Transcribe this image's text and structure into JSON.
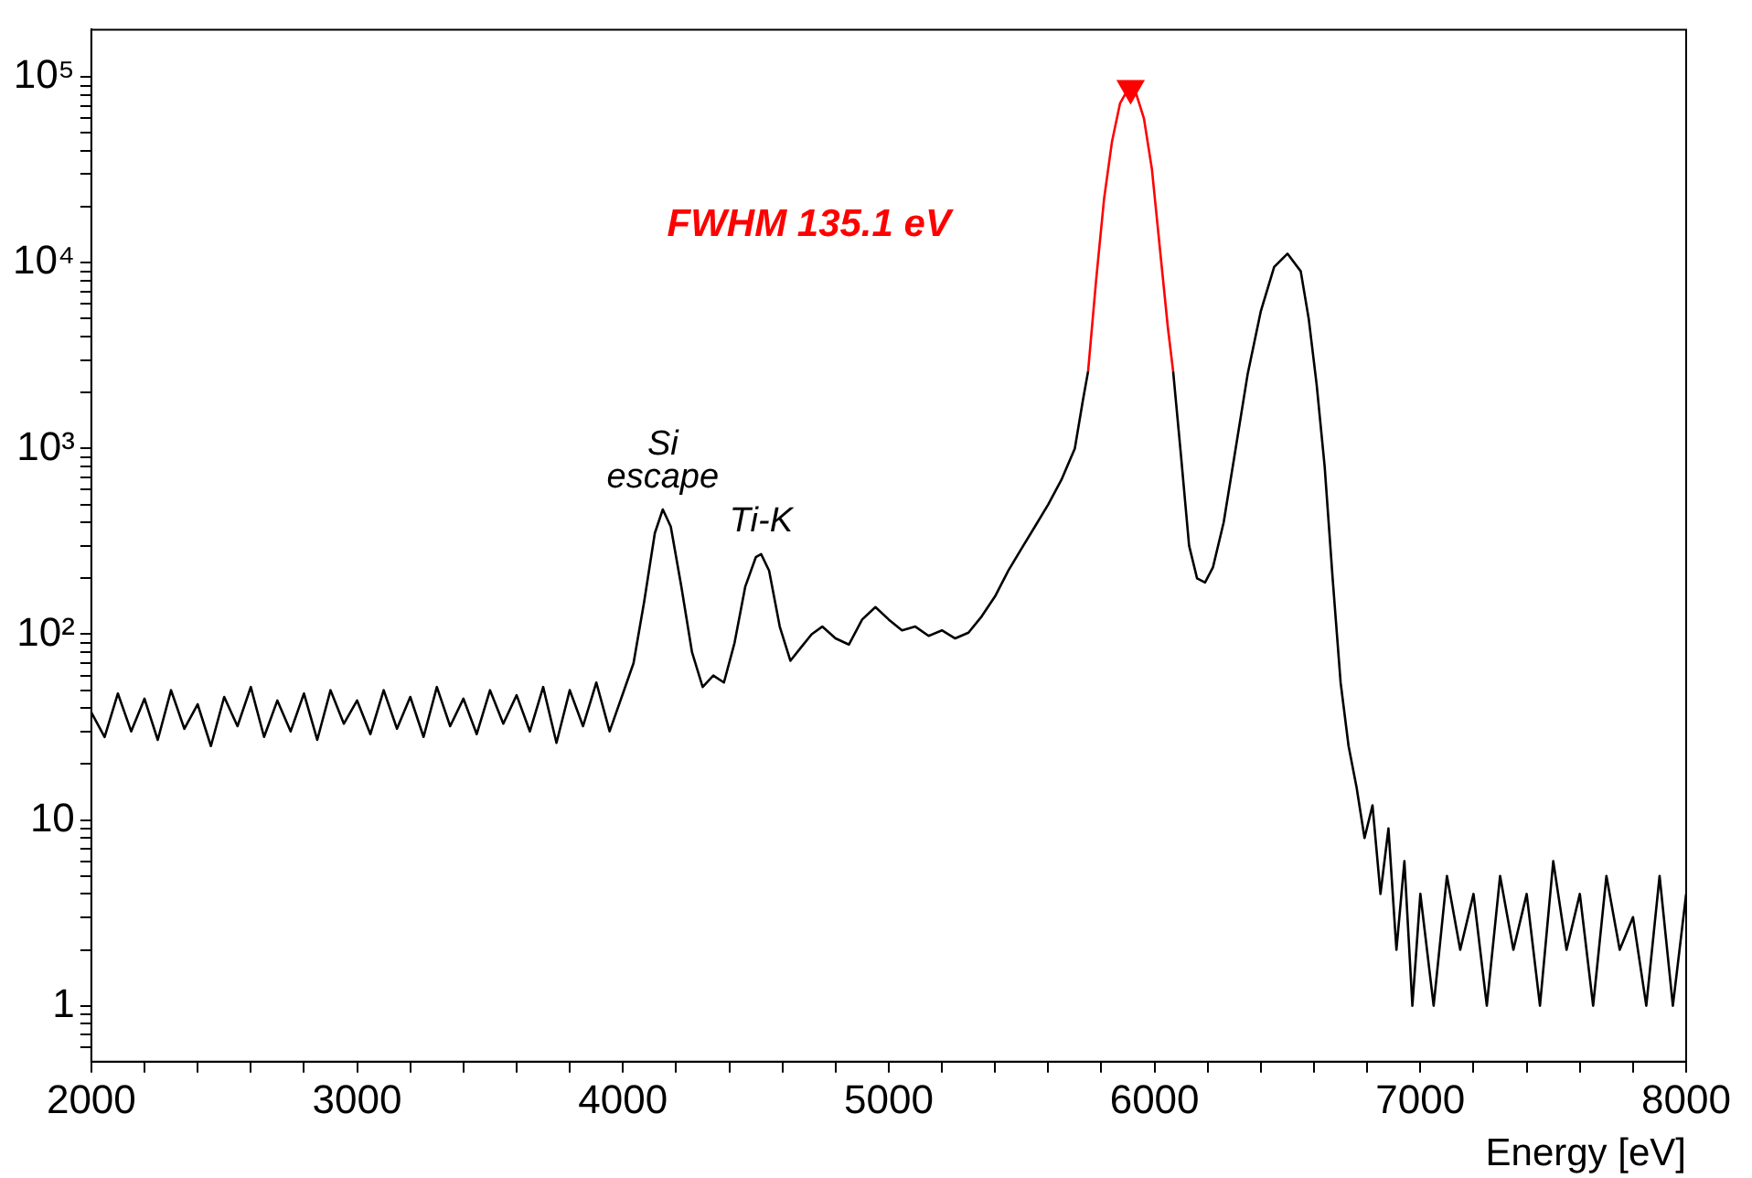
{
  "chart_data": {
    "type": "line",
    "xlabel": "Energy [eV]",
    "log": "y",
    "grid": false,
    "legend": false,
    "marker": "none",
    "line_style": "solid",
    "xlim": [
      2000,
      8000
    ],
    "xticks": [
      2000,
      {
        "value": 2200,
        "label": null
      },
      {
        "value": 2400,
        "label": null
      },
      {
        "value": 2600,
        "label": null
      },
      {
        "value": 2800,
        "label": null
      },
      3000,
      {
        "value": 3200,
        "label": null
      },
      {
        "value": 3400,
        "label": null
      },
      {
        "value": 3600,
        "label": null
      },
      {
        "value": 3800,
        "label": null
      },
      4000,
      {
        "value": 4200,
        "label": null
      },
      {
        "value": 4400,
        "label": null
      },
      {
        "value": 4600,
        "label": null
      },
      {
        "value": 4800,
        "label": null
      },
      5000,
      {
        "value": 5200,
        "label": null
      },
      {
        "value": 5400,
        "label": null
      },
      {
        "value": 5600,
        "label": null
      },
      {
        "value": 5800,
        "label": null
      },
      6000,
      {
        "value": 6200,
        "label": null
      },
      {
        "value": 6400,
        "label": null
      },
      {
        "value": 6600,
        "label": null
      },
      {
        "value": 6800,
        "label": null
      },
      7000,
      {
        "value": 7200,
        "label": null
      },
      {
        "value": 7400,
        "label": null
      },
      {
        "value": 7600,
        "label": null
      },
      {
        "value": 7800,
        "label": null
      },
      8000
    ],
    "ylim": [
      0.5,
      180000
    ],
    "yticks": [
      {
        "value": 0.6,
        "label": null
      },
      {
        "value": 0.7,
        "label": null
      },
      {
        "value": 0.8,
        "label": null
      },
      {
        "value": 0.9,
        "label": null
      },
      1,
      {
        "value": 2,
        "label": null
      },
      {
        "value": 3,
        "label": null
      },
      {
        "value": 4,
        "label": null
      },
      {
        "value": 5,
        "label": null
      },
      {
        "value": 6,
        "label": null
      },
      {
        "value": 7,
        "label": null
      },
      {
        "value": 8,
        "label": null
      },
      {
        "value": 9,
        "label": null
      },
      10,
      {
        "value": 20,
        "label": null
      },
      {
        "value": 30,
        "label": null
      },
      {
        "value": 40,
        "label": null
      },
      {
        "value": 50,
        "label": null
      },
      {
        "value": 60,
        "label": null
      },
      {
        "value": 70,
        "label": null
      },
      {
        "value": 80,
        "label": null
      },
      {
        "value": 90,
        "label": null
      },
      {
        "value": 100,
        "label": "10²"
      },
      {
        "value": 200,
        "label": null
      },
      {
        "value": 300,
        "label": null
      },
      {
        "value": 400,
        "label": null
      },
      {
        "value": 500,
        "label": null
      },
      {
        "value": 600,
        "label": null
      },
      {
        "value": 700,
        "label": null
      },
      {
        "value": 800,
        "label": null
      },
      {
        "value": 900,
        "label": null
      },
      {
        "value": 1000,
        "label": "10³"
      },
      {
        "value": 2000,
        "label": null
      },
      {
        "value": 3000,
        "label": null
      },
      {
        "value": 4000,
        "label": null
      },
      {
        "value": 5000,
        "label": null
      },
      {
        "value": 6000,
        "label": null
      },
      {
        "value": 7000,
        "label": null
      },
      {
        "value": 8000,
        "label": null
      },
      {
        "value": 9000,
        "label": null
      },
      {
        "value": 10000,
        "label": "10⁴"
      },
      {
        "value": 20000,
        "label": null
      },
      {
        "value": 30000,
        "label": null
      },
      {
        "value": 40000,
        "label": null
      },
      {
        "value": 50000,
        "label": null
      },
      {
        "value": 60000,
        "label": null
      },
      {
        "value": 70000,
        "label": null
      },
      {
        "value": 80000,
        "label": null
      },
      {
        "value": 90000,
        "label": null
      },
      {
        "value": 100000,
        "label": "10⁵"
      }
    ],
    "annotations": [
      "FWHM 135.1 eV",
      {
        "text": "Si\nescape",
        "x": 4150,
        "y": 470
      },
      {
        "text": "Ti-K",
        "x": 4520,
        "y": 270
      }
    ],
    "series": [
      {
        "color": "#000000",
        "x": [
          2000,
          2050,
          2100,
          2150,
          2200,
          2250,
          2300,
          2350,
          2400,
          2450,
          2500,
          2550,
          2600,
          2650,
          2700,
          2750,
          2800,
          2850,
          2900,
          2950,
          3000,
          3050,
          3100,
          3150,
          3200,
          3250,
          3300,
          3350,
          3400,
          3450,
          3500,
          3550,
          3600,
          3650,
          3700,
          3750,
          3800,
          3850,
          3900,
          3950,
          4000,
          4040,
          4080,
          4120,
          4150,
          4180,
          4220,
          4260,
          4300,
          4340,
          4380,
          4420,
          4460,
          4500,
          4520,
          4550,
          4590,
          4630,
          4670,
          4710,
          4750,
          4800,
          4850,
          4900,
          4950,
          5000,
          5050,
          5100,
          5150,
          5200,
          5250,
          5300,
          5350,
          5400,
          5450,
          5500,
          5550,
          5600,
          5650,
          5700,
          5730,
          5750
        ],
        "values": [
          38,
          28,
          48,
          30,
          45,
          27,
          50,
          31,
          42,
          25,
          46,
          32,
          52,
          28,
          44,
          30,
          48,
          27,
          50,
          33,
          44,
          29,
          50,
          31,
          46,
          28,
          52,
          32,
          45,
          29,
          50,
          33,
          47,
          30,
          52,
          26,
          50,
          32,
          55,
          30,
          48,
          70,
          150,
          350,
          470,
          380,
          180,
          80,
          52,
          60,
          55,
          90,
          180,
          260,
          270,
          220,
          110,
          72,
          85,
          100,
          110,
          95,
          88,
          120,
          140,
          120,
          105,
          110,
          98,
          105,
          95,
          102,
          125,
          160,
          220,
          290,
          380,
          500,
          680,
          1000,
          1800,
          2600
        ]
      },
      {
        "color": "#ff0000",
        "x": [
          5750,
          5780,
          5810,
          5840,
          5870,
          5900,
          5910,
          5930,
          5960,
          5990,
          6020,
          6050,
          6070
        ],
        "values": [
          2600,
          8000,
          22000,
          45000,
          72000,
          86000,
          87000,
          82000,
          60000,
          32000,
          12000,
          4500,
          2600
        ]
      },
      {
        "color": "#000000",
        "x": [
          6070,
          6100,
          6130,
          6160,
          6190,
          6220,
          6260,
          6300,
          6350,
          6400,
          6450,
          6500,
          6550,
          6580,
          6610,
          6640,
          6670,
          6700,
          6730,
          6760,
          6790,
          6820,
          6850,
          6880,
          6910,
          6940,
          6970,
          7000,
          7050,
          7100,
          7150,
          7200,
          7250,
          7300,
          7350,
          7400,
          7450,
          7500,
          7550,
          7600,
          7650,
          7700,
          7750,
          7800,
          7850,
          7900,
          7950,
          8000
        ],
        "values": [
          2600,
          900,
          300,
          200,
          190,
          230,
          400,
          900,
          2500,
          5500,
          9500,
          11200,
          9000,
          5000,
          2200,
          800,
          200,
          55,
          25,
          15,
          8,
          12,
          4,
          9,
          2,
          6,
          1,
          4,
          1,
          5,
          2,
          4,
          1,
          5,
          2,
          4,
          1,
          6,
          2,
          4,
          1,
          5,
          2,
          3,
          1,
          5,
          1,
          4
        ]
      },
      {
        "type": "scatter",
        "color": "#ff0000",
        "marker": "triangle",
        "x": [
          5910
        ],
        "values": [
          87000
        ]
      }
    ]
  }
}
